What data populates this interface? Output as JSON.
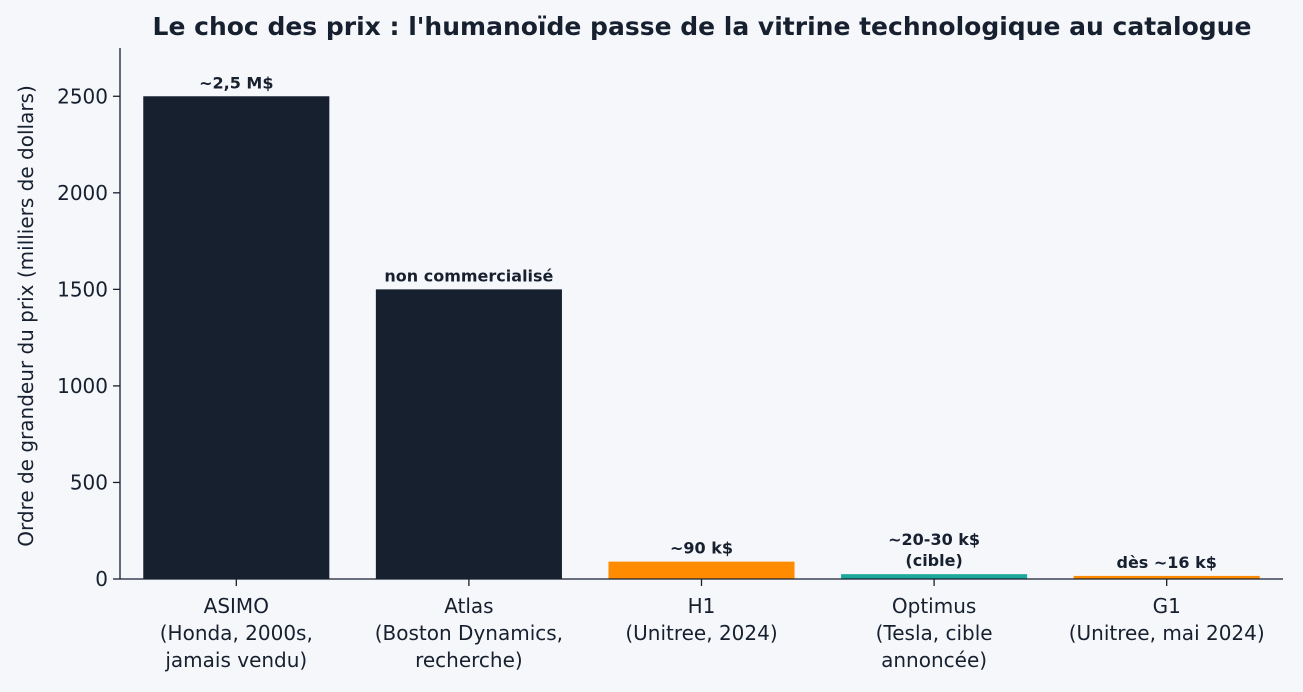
{
  "chart_data": {
    "type": "bar",
    "title": "Le choc des prix : l'humanoïde passe de la vitrine technologique au catalogue",
    "xlabel": "",
    "ylabel": "Ordre de grandeur du prix (milliers de dollars)",
    "ylim": [
      0,
      2750
    ],
    "yticks": [
      0,
      500,
      1000,
      1500,
      2000,
      2500
    ],
    "grid": false,
    "categories": [
      [
        "ASIMO",
        "(Honda, 2000s,",
        "jamais vendu)"
      ],
      [
        "Atlas",
        "(Boston Dynamics,",
        "recherche)"
      ],
      [
        "H1",
        "(Unitree, 2024)"
      ],
      [
        "Optimus",
        "(Tesla, cible",
        "annoncée)"
      ],
      [
        "G1",
        "(Unitree, mai 2024)"
      ]
    ],
    "values": [
      2500,
      1500,
      90,
      25,
      16
    ],
    "labels": [
      [
        "~2,5 M$"
      ],
      [
        "non commercialisé"
      ],
      [
        "~90 k$"
      ],
      [
        "~20-30 k$",
        "(cible)"
      ],
      [
        "dès ~16 k$"
      ]
    ],
    "colors": [
      "#17202f",
      "#17202f",
      "#ff8c00",
      "#1aa99a",
      "#ff8c00"
    ]
  }
}
